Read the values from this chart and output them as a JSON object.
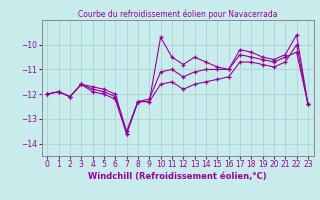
{
  "title": "Courbe du refroidissement éolien pour Navacerrada",
  "xlabel": "Windchill (Refroidissement éolien,°C)",
  "background_color": "#c8ecec",
  "grid_color": "#aad4d4",
  "line_color": "#990099",
  "xlim": [
    -0.5,
    23.5
  ],
  "ylim": [
    -14.5,
    -9.0
  ],
  "yticks": [
    -14,
    -13,
    -12,
    -11,
    -10
  ],
  "xticks": [
    0,
    1,
    2,
    3,
    4,
    5,
    6,
    7,
    8,
    9,
    10,
    11,
    12,
    13,
    14,
    15,
    16,
    17,
    18,
    19,
    20,
    21,
    22,
    23
  ],
  "series": [
    [
      -12.0,
      -11.9,
      -12.1,
      -11.6,
      -11.7,
      -11.8,
      -12.0,
      -13.5,
      -12.3,
      -12.3,
      -9.7,
      -10.5,
      -10.8,
      -10.5,
      -10.7,
      -10.9,
      -11.0,
      -10.2,
      -10.3,
      -10.5,
      -10.6,
      -10.4,
      -9.6,
      -12.4
    ],
    [
      -12.0,
      -11.9,
      -12.1,
      -11.6,
      -11.9,
      -12.0,
      -12.2,
      -13.6,
      -12.3,
      -12.2,
      -11.1,
      -11.0,
      -11.3,
      -11.1,
      -11.0,
      -11.0,
      -11.0,
      -10.4,
      -10.5,
      -10.6,
      -10.7,
      -10.5,
      -10.3,
      -12.4
    ],
    [
      -12.0,
      -11.9,
      -12.1,
      -11.6,
      -11.8,
      -11.9,
      -12.1,
      -13.6,
      -12.3,
      -12.3,
      -11.6,
      -11.5,
      -11.8,
      -11.6,
      -11.5,
      -11.4,
      -11.3,
      -10.7,
      -10.7,
      -10.8,
      -10.9,
      -10.7,
      -10.0,
      -12.4
    ]
  ],
  "tick_fontsize": 5.5,
  "xlabel_fontsize": 6.0,
  "title_fontsize": 5.5
}
